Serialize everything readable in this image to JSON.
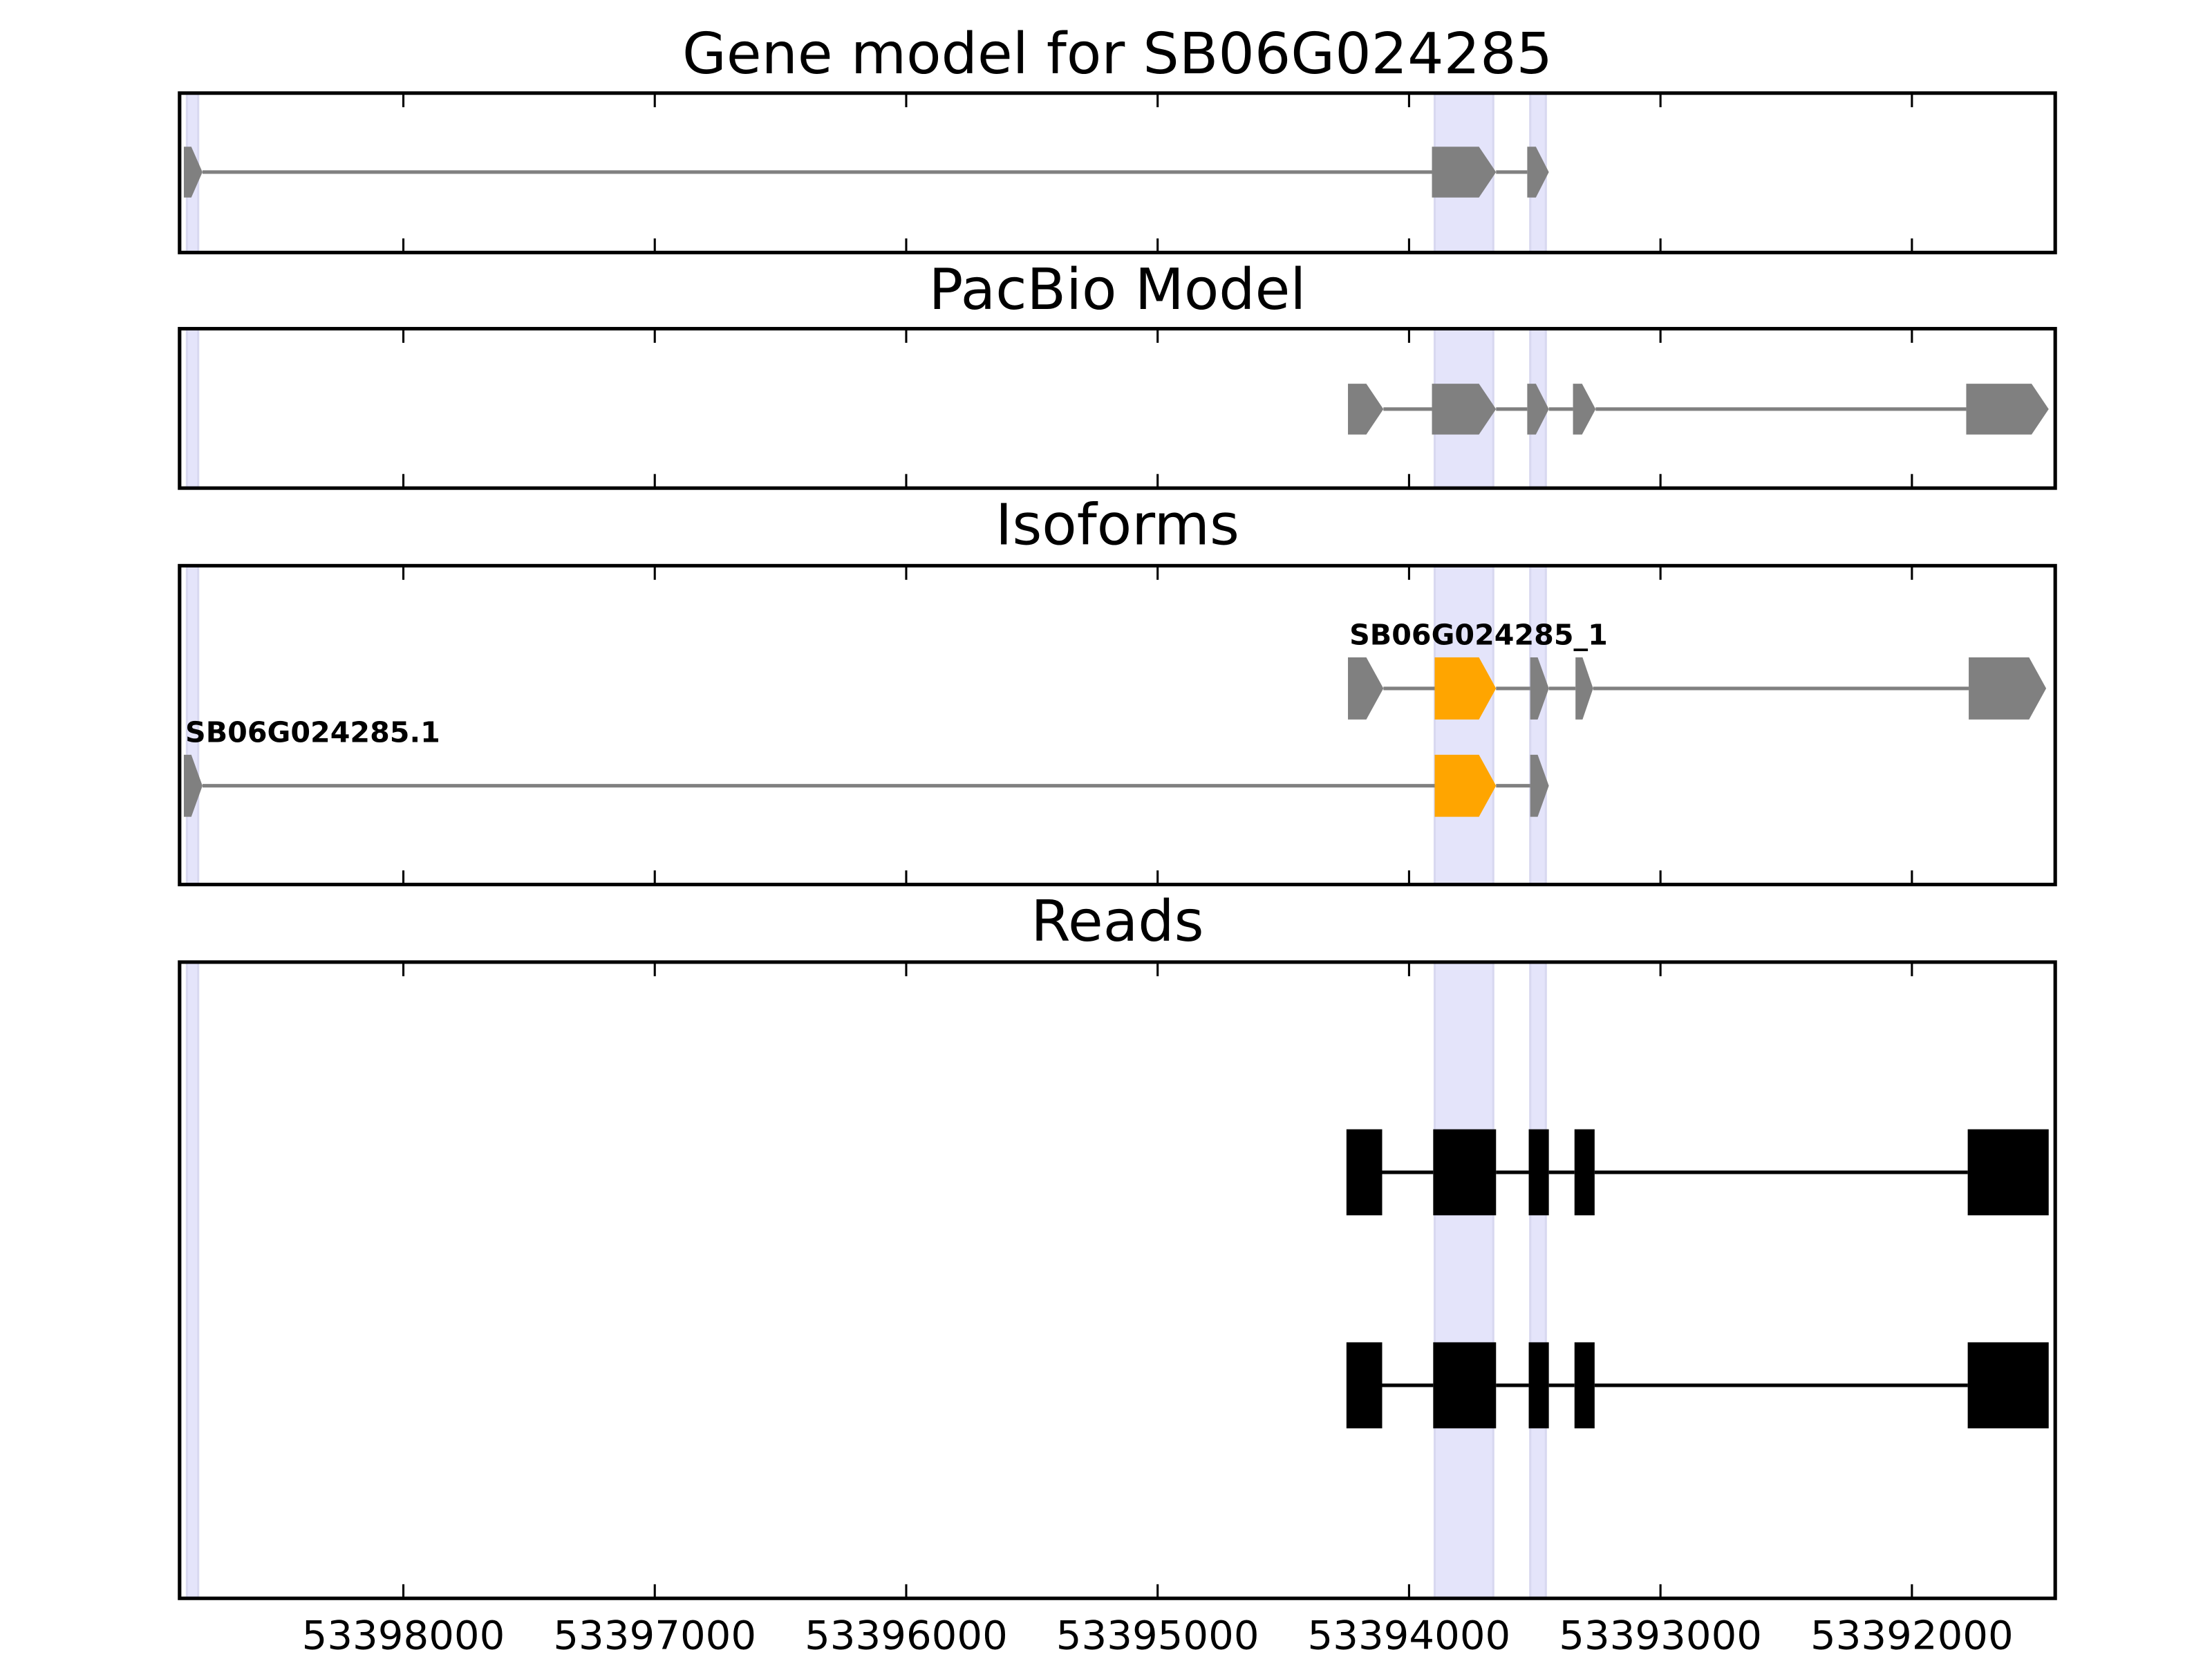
{
  "chart_data": [
    {
      "type": "gene-track",
      "title": "Gene model for SB06G024285",
      "xlim": [
        53398890,
        53391430
      ],
      "highlights": [
        [
          53398861,
          53398816
        ],
        [
          53393898,
          53393665
        ],
        [
          53393518,
          53393456
        ]
      ],
      "tracks": [
        {
          "exons": [
            [
              53398873,
              53398799
            ],
            [
              53393909,
              53393654
            ],
            [
              53393530,
              53393444
            ]
          ],
          "colors": [
            "#808080",
            "#808080",
            "#808080"
          ]
        }
      ]
    },
    {
      "type": "gene-track",
      "title": "PacBio Model",
      "xlim": [
        53398890,
        53391430
      ],
      "highlights": [
        [
          53398861,
          53398816
        ],
        [
          53393898,
          53393665
        ],
        [
          53393518,
          53393456
        ]
      ],
      "tracks": [
        {
          "exons": [
            [
              53394243,
              53394102
            ],
            [
              53393909,
              53393654
            ],
            [
              53393530,
              53393444
            ],
            [
              53393348,
              53393258
            ],
            [
              53391784,
              53391456
            ]
          ],
          "colors": [
            "#808080",
            "#808080",
            "#808080",
            "#808080",
            "#808080"
          ]
        }
      ]
    },
    {
      "type": "gene-track",
      "title": "Isoforms",
      "xlim": [
        53398890,
        53391430
      ],
      "highlights": [
        [
          53398861,
          53398816
        ],
        [
          53393898,
          53393665
        ],
        [
          53393518,
          53393456
        ]
      ],
      "tracks": [
        {
          "name": "SB06G024285_1",
          "exons": [
            [
              53394243,
              53394102
            ],
            [
              53393898,
              53393654
            ],
            [
              53393518,
              53393444
            ],
            [
              53393338,
              53393268
            ],
            [
              53391774,
              53391466
            ]
          ],
          "colors": [
            "#808080",
            "#ffa500",
            "#808080",
            "#808080",
            "#808080"
          ]
        },
        {
          "name": "SB06G024285.1",
          "exons": [
            [
              53398873,
              53398799
            ],
            [
              53393898,
              53393654
            ],
            [
              53393518,
              53393444
            ]
          ],
          "colors": [
            "#808080",
            "#ffa500",
            "#808080"
          ]
        }
      ]
    },
    {
      "type": "read-track",
      "title": "Reads",
      "xlim": [
        53398890,
        53391430
      ],
      "xticks": [
        53398000,
        53397000,
        53396000,
        53395000,
        53394000,
        53393000,
        53392000
      ],
      "highlights": [
        [
          53398861,
          53398816
        ],
        [
          53393898,
          53393665
        ],
        [
          53393518,
          53393456
        ]
      ],
      "tracks": [
        {
          "exons": [
            [
              53394249,
              53394107
            ],
            [
              53393904,
              53393654
            ],
            [
              53393524,
              53393444
            ],
            [
              53393342,
              53393262
            ],
            [
              53391778,
              53391456
            ]
          ],
          "colors": [
            "#000000",
            "#000000",
            "#000000",
            "#000000",
            "#000000"
          ]
        },
        {
          "exons": [
            [
              53394249,
              53394107
            ],
            [
              53393904,
              53393654
            ],
            [
              53393524,
              53393444
            ],
            [
              53393342,
              53393262
            ],
            [
              53391778,
              53391456
            ]
          ],
          "colors": [
            "#000000",
            "#000000",
            "#000000",
            "#000000",
            "#000000"
          ]
        }
      ]
    }
  ]
}
